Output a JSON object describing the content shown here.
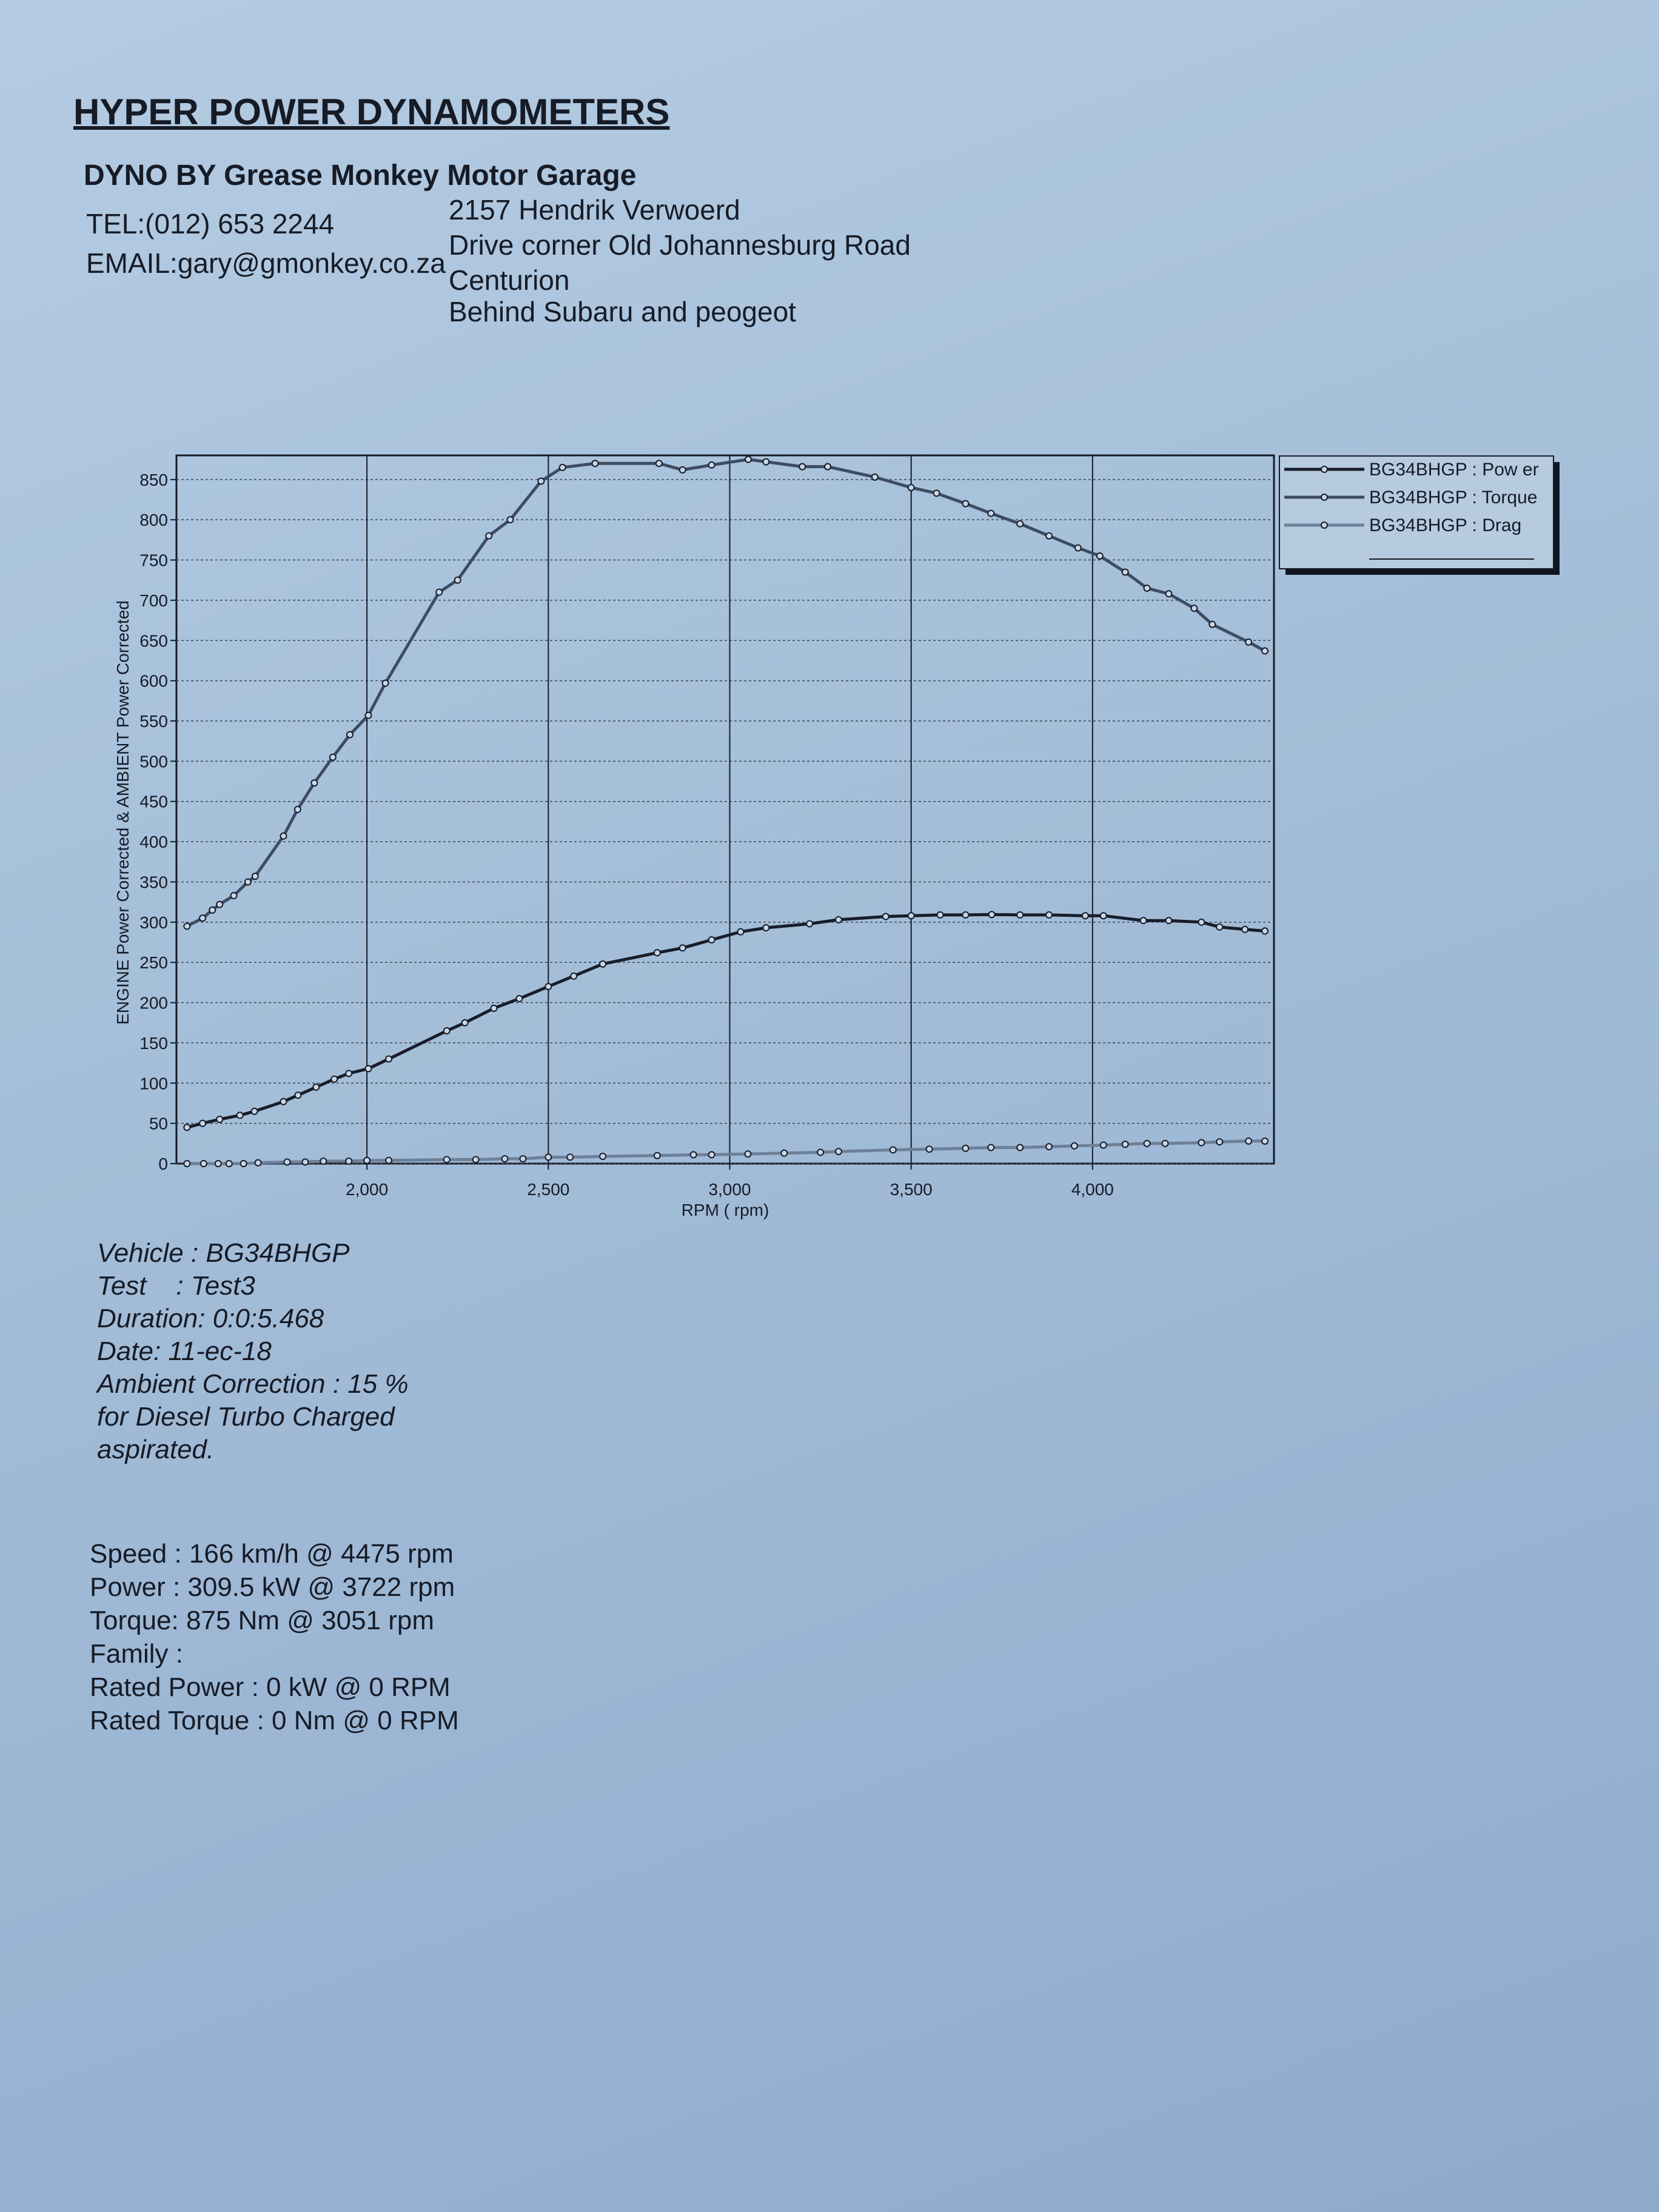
{
  "header": {
    "title": "HYPER POWER DYNAMOMETERS",
    "subtitle": "DYNO BY Grease Monkey Motor Garage"
  },
  "contact": {
    "tel": "TEL:(012) 653 2244",
    "email": "EMAIL:gary@gmonkey.co.za"
  },
  "address": [
    "2157 Hendrik Verwoerd",
    "Drive corner Old Johannesburg Road",
    "Centurion",
    "Behind Subaru and peogeot"
  ],
  "chart_data": {
    "type": "line",
    "ylabel": "ENGINE Power Corrected & AMBIENT Power Corrected",
    "xlabel": "RPM ( rpm)",
    "xlim": [
      1475,
      4500
    ],
    "ylim": [
      0,
      880
    ],
    "xticks": [
      {
        "value": 2000,
        "label": "2,000"
      },
      {
        "value": 2500,
        "label": "2,500"
      },
      {
        "value": 3000,
        "label": "3,000"
      },
      {
        "value": 3500,
        "label": "3,500"
      },
      {
        "value": 4000,
        "label": "4,000"
      }
    ],
    "yticks": [
      0,
      50,
      100,
      150,
      200,
      250,
      300,
      350,
      400,
      450,
      500,
      550,
      600,
      650,
      700,
      750,
      800,
      850
    ],
    "grid": true,
    "legend": "right",
    "series": [
      {
        "name": "BG34BHGP : Pow er",
        "color": "#171d29",
        "x": [
          1504,
          1547,
          1594,
          1650,
          1690,
          1770,
          1810,
          1860,
          1910,
          1950,
          2004,
          2060,
          2220,
          2270,
          2350,
          2420,
          2500,
          2570,
          2650,
          2800,
          2870,
          2950,
          3030,
          3100,
          3220,
          3300,
          3430,
          3500,
          3580,
          3650,
          3722,
          3800,
          3880,
          3980,
          4030,
          4140,
          4210,
          4300,
          4350,
          4420,
          4475
        ],
        "values": [
          45,
          50,
          55,
          60,
          65,
          77,
          85,
          95,
          105,
          112,
          118,
          130,
          165,
          175,
          193,
          205,
          220,
          233,
          248,
          262,
          268,
          278,
          288,
          293,
          298,
          303,
          307,
          308,
          309,
          309,
          309.5,
          309,
          309,
          308,
          308,
          302,
          302,
          300,
          294,
          291,
          289
        ]
      },
      {
        "name": "BG34BHGP : Torque",
        "color": "#3d4c63",
        "x": [
          1504,
          1547,
          1574,
          1594,
          1633,
          1672,
          1692,
          1770,
          1809,
          1855,
          1906,
          1953,
          2004,
          2051,
          2199,
          2250,
          2336,
          2395,
          2480,
          2539,
          2629,
          2805,
          2870,
          2950,
          3051,
          3100,
          3200,
          3270,
          3400,
          3500,
          3570,
          3650,
          3720,
          3800,
          3880,
          3960,
          4020,
          4090,
          4150,
          4210,
          4280,
          4330,
          4430,
          4475
        ],
        "values": [
          295,
          305,
          315,
          322,
          333,
          350,
          357,
          407,
          440,
          473,
          505,
          533,
          557,
          597,
          710,
          725,
          780,
          800,
          848,
          865,
          870,
          870,
          862,
          868,
          875,
          872,
          866,
          866,
          853,
          840,
          833,
          820,
          808,
          795,
          780,
          765,
          755,
          735,
          715,
          708,
          690,
          670,
          648,
          637
        ]
      },
      {
        "name": "BG34BHGP : Drag",
        "color": "#6c8099",
        "x": [
          1504,
          1550,
          1590,
          1620,
          1660,
          1700,
          1780,
          1830,
          1880,
          1950,
          2000,
          2060,
          2220,
          2300,
          2380,
          2430,
          2500,
          2560,
          2650,
          2800,
          2900,
          2950,
          3050,
          3150,
          3250,
          3300,
          3450,
          3550,
          3650,
          3720,
          3800,
          3880,
          3950,
          4030,
          4090,
          4150,
          4200,
          4300,
          4350,
          4430,
          4475
        ],
        "values": [
          0,
          0,
          0,
          0,
          0,
          1,
          2,
          2,
          3,
          3,
          4,
          4,
          5,
          5,
          6,
          6,
          8,
          8,
          9,
          10,
          11,
          11,
          12,
          13,
          14,
          15,
          17,
          18,
          19,
          20,
          20,
          21,
          22,
          23,
          24,
          25,
          25,
          26,
          27,
          28,
          28
        ]
      }
    ]
  },
  "test_info": [
    "Vehicle : BG34BHGP",
    "Test    : Test3",
    "Duration: 0:0:5.468",
    "Date: 11-ec-18",
    "Ambient Correction : 15 %",
    "for Diesel Turbo Charged",
    "aspirated."
  ],
  "summary": [
    "Speed : 166 km/h @ 4475 rpm",
    "Power : 309.5 kW @ 3722 rpm",
    "Torque: 875 Nm @ 3051 rpm",
    "Family :",
    "Rated Power : 0 kW @ 0 RPM",
    "Rated Torque : 0 Nm @ 0 RPM"
  ]
}
